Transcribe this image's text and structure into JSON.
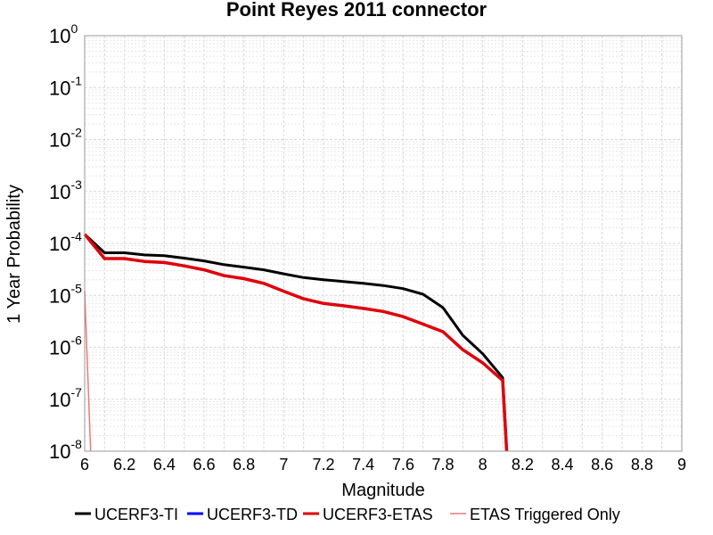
{
  "chart_data": {
    "type": "line",
    "title": "Point Reyes 2011 connector",
    "xlabel": "Magnitude",
    "ylabel": "1 Year Probability",
    "xlim": [
      6,
      9
    ],
    "ylim": [
      1e-08,
      1
    ],
    "yscale": "log",
    "grid": true,
    "legend_position": "bottom",
    "x_ticks": [
      "6",
      "6.2",
      "6.4",
      "6.6",
      "6.8",
      "7",
      "7.2",
      "7.4",
      "7.6",
      "7.8",
      "8",
      "8.2",
      "8.4",
      "8.6",
      "8.8",
      "9"
    ],
    "y_ticks": [
      {
        "base": "10",
        "exp": "0"
      },
      {
        "base": "10",
        "exp": "-1"
      },
      {
        "base": "10",
        "exp": "-2"
      },
      {
        "base": "10",
        "exp": "-3"
      },
      {
        "base": "10",
        "exp": "-4"
      },
      {
        "base": "10",
        "exp": "-5"
      },
      {
        "base": "10",
        "exp": "-6"
      },
      {
        "base": "10",
        "exp": "-7"
      },
      {
        "base": "10",
        "exp": "-8"
      }
    ],
    "series": [
      {
        "name": "UCERF3-TI",
        "color": "#000000",
        "width": 3,
        "x": [
          6.0,
          6.1,
          6.2,
          6.3,
          6.4,
          6.5,
          6.6,
          6.7,
          6.8,
          6.9,
          7.0,
          7.1,
          7.2,
          7.3,
          7.4,
          7.5,
          7.6,
          7.7,
          7.8,
          7.9,
          8.0,
          8.1,
          8.12
        ],
        "values": [
          0.00015,
          6.6e-05,
          6.6e-05,
          6e-05,
          5.8e-05,
          5.2e-05,
          4.6e-05,
          3.9e-05,
          3.5e-05,
          3.1e-05,
          2.6e-05,
          2.2e-05,
          2e-05,
          1.85e-05,
          1.7e-05,
          1.55e-05,
          1.35e-05,
          1.05e-05,
          5.8e-06,
          1.7e-06,
          7.5e-07,
          2.6e-07,
          1e-08
        ]
      },
      {
        "name": "UCERF3-TD",
        "color": "#0000ff",
        "width": 3,
        "x": [
          6.0,
          6.1,
          6.2,
          6.3,
          6.4,
          6.5,
          6.6,
          6.7,
          6.8,
          6.9,
          7.0,
          7.1,
          7.2,
          7.3,
          7.4,
          7.5,
          7.6,
          7.7,
          7.8,
          7.9,
          8.0,
          8.1,
          8.12
        ],
        "values": [
          0.00015,
          5.1e-05,
          5.1e-05,
          4.5e-05,
          4.3e-05,
          3.7e-05,
          3.1e-05,
          2.4e-05,
          2.1e-05,
          1.7e-05,
          1.2e-05,
          8.6e-06,
          7e-06,
          6.3e-06,
          5.6e-06,
          4.9e-06,
          3.9e-06,
          2.8e-06,
          2e-06,
          9e-07,
          5e-07,
          2.3e-07,
          1e-08
        ]
      },
      {
        "name": "UCERF3-ETAS",
        "color": "#e0000a",
        "width": 3.5,
        "x": [
          6.0,
          6.1,
          6.2,
          6.3,
          6.4,
          6.5,
          6.6,
          6.7,
          6.8,
          6.9,
          7.0,
          7.1,
          7.2,
          7.3,
          7.4,
          7.5,
          7.6,
          7.7,
          7.8,
          7.9,
          8.0,
          8.1,
          8.12
        ],
        "values": [
          0.00015,
          5.1e-05,
          5.1e-05,
          4.5e-05,
          4.3e-05,
          3.7e-05,
          3.1e-05,
          2.4e-05,
          2.1e-05,
          1.7e-05,
          1.2e-05,
          8.6e-06,
          7e-06,
          6.3e-06,
          5.6e-06,
          4.9e-06,
          3.9e-06,
          2.8e-06,
          2e-06,
          9e-07,
          5e-07,
          2.3e-07,
          1e-08
        ]
      },
      {
        "name": "ETAS Triggered Only",
        "color": "#f07878",
        "width": 1.5,
        "x": [
          6.0,
          6.03
        ],
        "values": [
          1.2e-05,
          1e-08
        ]
      }
    ]
  }
}
